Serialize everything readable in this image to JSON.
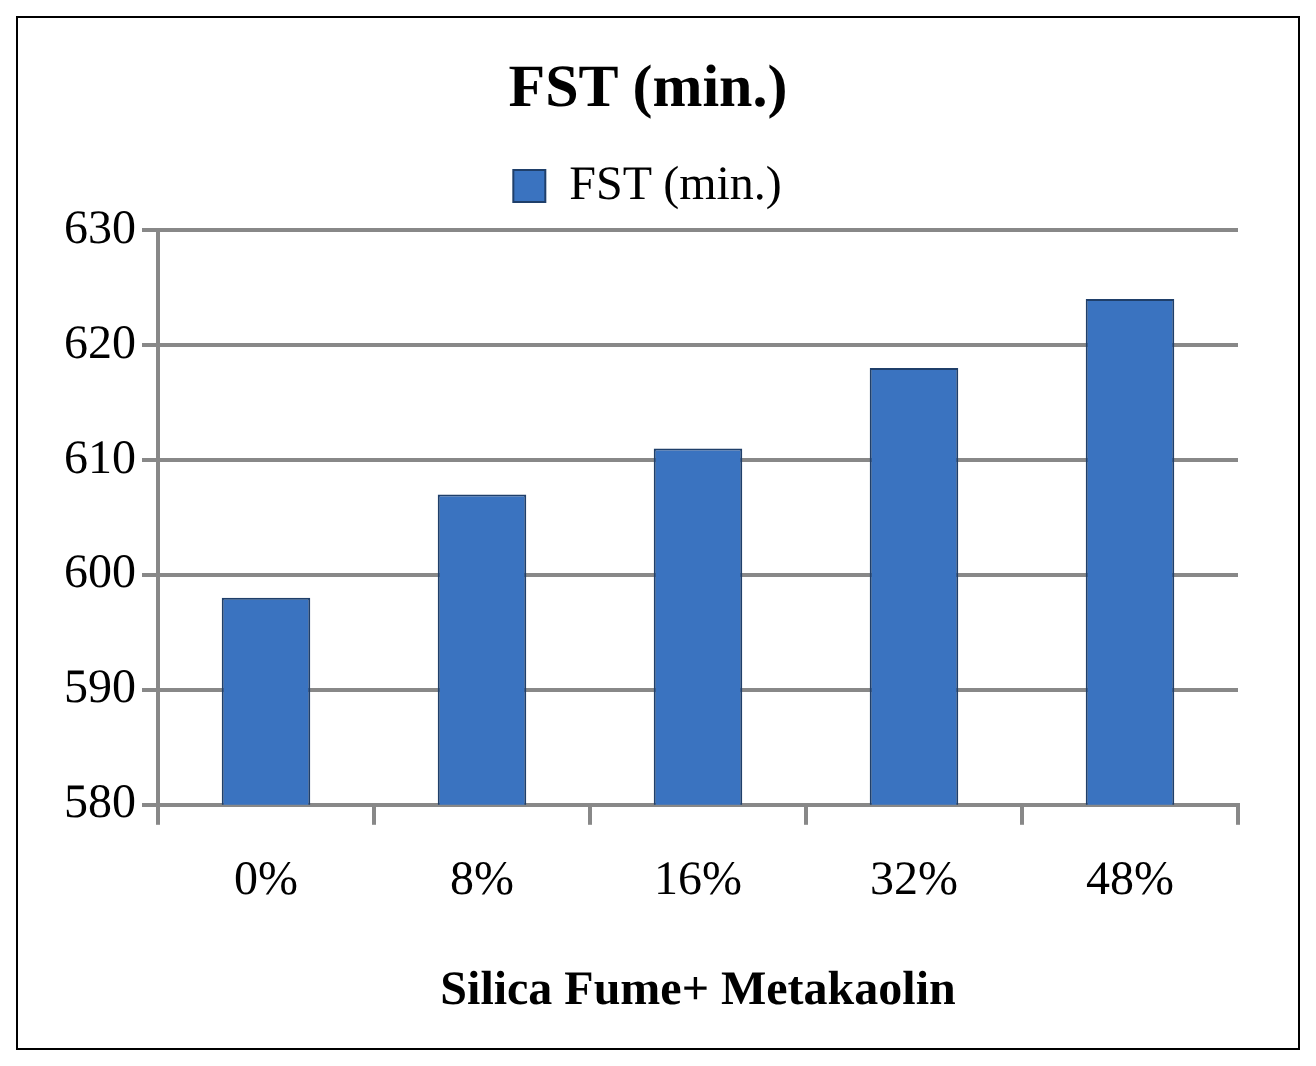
{
  "chart_data": {
    "type": "bar",
    "title": "FST (min.)",
    "xlabel": "Silica Fume+ Metakaolin",
    "categories": [
      "0%",
      "8%",
      "16%",
      "32%",
      "48%"
    ],
    "series": [
      {
        "name": "FST (min.)",
        "color": "#3a73c0",
        "values": [
          598,
          607,
          611,
          618,
          624
        ]
      }
    ],
    "ylim": [
      580,
      630
    ],
    "yticks": [
      580,
      590,
      600,
      610,
      620,
      630
    ],
    "grid": "y",
    "legend": "top"
  }
}
